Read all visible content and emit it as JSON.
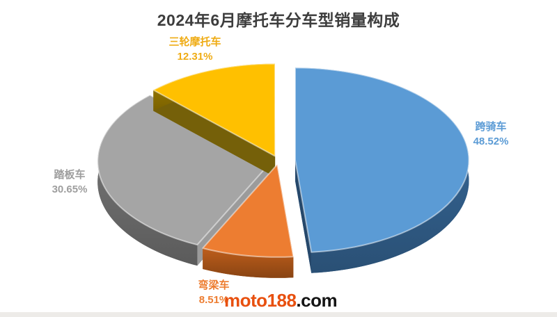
{
  "chart_data": {
    "type": "pie",
    "style": "3d-exploded",
    "title": "2024年6月摩托车分车型销量构成",
    "unit": "%",
    "legend": "none",
    "labels_position": "outside",
    "slices": [
      {
        "label": "跨骑车",
        "value": 48.52,
        "display": "48.52%",
        "color": "#5B9BD5",
        "label_color": "#5B9BD5"
      },
      {
        "label": "弯梁车",
        "value": 8.51,
        "display": "8.51%",
        "color": "#ED7D31",
        "label_color": "#ED7D31"
      },
      {
        "label": "踏板车",
        "value": 30.65,
        "display": "30.65%",
        "color": "#A5A5A5",
        "label_color": "#9E9E9E"
      },
      {
        "label": "三轮摩托车",
        "value": 12.31,
        "display": "12.31%",
        "color": "#FFC000",
        "label_color": "#EFAC15"
      }
    ]
  },
  "watermark": {
    "brand": "moto188",
    "suffix": ".com",
    "brand_color": "#E8500F",
    "suffix_color": "#151515"
  }
}
